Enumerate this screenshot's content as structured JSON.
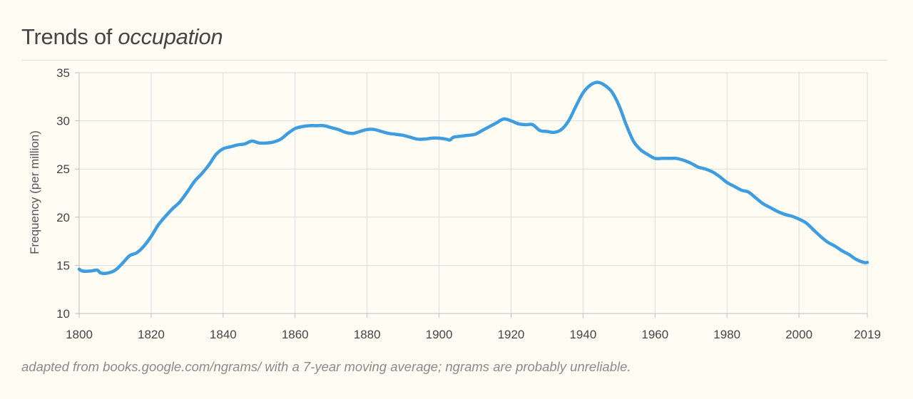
{
  "header": {
    "title_prefix": "Trends of ",
    "title_word": "occupation"
  },
  "footnote": "adapted from books.google.com/ngrams/ with a 7-year moving average; ngrams are probably unreliable.",
  "colors": {
    "line": "#3d9de0",
    "grid": "#dcdcdc",
    "axis": "#bdbdbd"
  },
  "chart_data": {
    "type": "line",
    "title": "Trends of occupation",
    "xlabel": "",
    "ylabel": "Frequency (per million)",
    "xlim": [
      1800,
      2019
    ],
    "ylim": [
      10,
      35
    ],
    "x_ticks": [
      1800,
      1820,
      1840,
      1860,
      1880,
      1900,
      1920,
      1940,
      1960,
      1980,
      2000,
      2019
    ],
    "y_ticks": [
      10,
      15,
      20,
      25,
      30,
      35
    ],
    "grid": true,
    "series": [
      {
        "name": "occupation",
        "x": [
          1800,
          1801,
          1803,
          1805,
          1806,
          1808,
          1810,
          1812,
          1814,
          1816,
          1818,
          1820,
          1822,
          1824,
          1826,
          1828,
          1830,
          1832,
          1834,
          1836,
          1838,
          1840,
          1842,
          1844,
          1846,
          1848,
          1850,
          1852,
          1854,
          1856,
          1858,
          1860,
          1862,
          1864,
          1866,
          1868,
          1870,
          1872,
          1874,
          1876,
          1878,
          1880,
          1882,
          1884,
          1886,
          1888,
          1890,
          1892,
          1894,
          1896,
          1898,
          1900,
          1902,
          1903,
          1904,
          1906,
          1908,
          1910,
          1912,
          1914,
          1916,
          1918,
          1920,
          1922,
          1924,
          1926,
          1928,
          1930,
          1932,
          1934,
          1936,
          1938,
          1940,
          1942,
          1944,
          1946,
          1948,
          1950,
          1952,
          1954,
          1956,
          1958,
          1960,
          1962,
          1964,
          1966,
          1968,
          1970,
          1972,
          1974,
          1976,
          1978,
          1980,
          1982,
          1984,
          1986,
          1988,
          1990,
          1992,
          1994,
          1996,
          1998,
          2000,
          2002,
          2004,
          2006,
          2008,
          2010,
          2012,
          2014,
          2016,
          2018,
          2019
        ],
        "values": [
          14.6,
          14.4,
          14.4,
          14.5,
          14.2,
          14.2,
          14.5,
          15.2,
          16.0,
          16.3,
          17.0,
          18.0,
          19.2,
          20.1,
          20.9,
          21.6,
          22.6,
          23.7,
          24.5,
          25.4,
          26.5,
          27.1,
          27.3,
          27.5,
          27.6,
          27.9,
          27.7,
          27.7,
          27.8,
          28.1,
          28.7,
          29.2,
          29.4,
          29.5,
          29.5,
          29.5,
          29.3,
          29.1,
          28.8,
          28.7,
          28.9,
          29.1,
          29.1,
          28.9,
          28.7,
          28.6,
          28.5,
          28.3,
          28.1,
          28.1,
          28.2,
          28.2,
          28.1,
          28.0,
          28.3,
          28.4,
          28.5,
          28.6,
          29.0,
          29.4,
          29.8,
          30.2,
          30.0,
          29.7,
          29.6,
          29.6,
          29.0,
          28.9,
          28.8,
          29.1,
          30.0,
          31.5,
          32.9,
          33.7,
          34.0,
          33.7,
          33.0,
          31.6,
          29.6,
          27.9,
          27.0,
          26.5,
          26.1,
          26.1,
          26.1,
          26.1,
          25.9,
          25.6,
          25.2,
          25.0,
          24.7,
          24.2,
          23.6,
          23.2,
          22.8,
          22.6,
          22.0,
          21.4,
          21.0,
          20.6,
          20.3,
          20.1,
          19.8,
          19.4,
          18.7,
          18.0,
          17.4,
          17.0,
          16.5,
          16.1,
          15.6,
          15.3,
          15.3
        ]
      }
    ]
  }
}
